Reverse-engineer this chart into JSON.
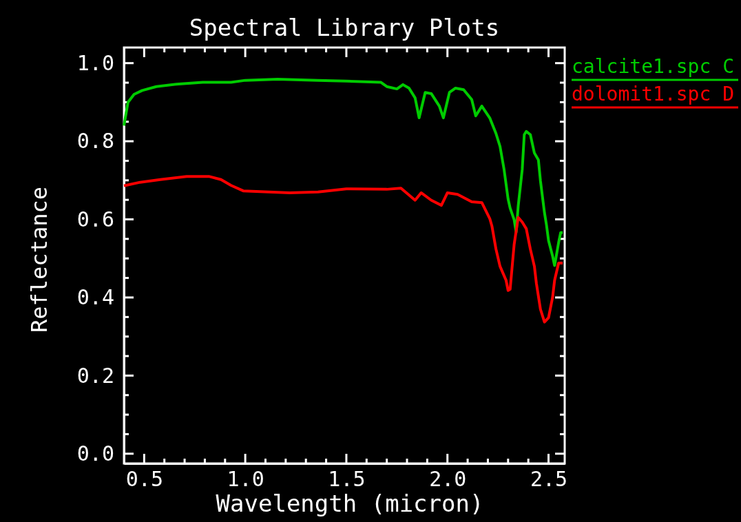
{
  "chart_data": {
    "type": "line",
    "title": "Spectral Library Plots",
    "xlabel": "Wavelength (micron)",
    "ylabel": "Reflectance",
    "xlim": [
      0.4,
      2.58
    ],
    "ylim": [
      -0.025,
      1.04
    ],
    "xticks": [
      {
        "value": 0.5,
        "label": "0.5"
      },
      {
        "value": 0.6,
        "label": null
      },
      {
        "value": 0.7,
        "label": null
      },
      {
        "value": 0.8,
        "label": null
      },
      {
        "value": 0.9,
        "label": null
      },
      {
        "value": 1.0,
        "label": "1.0"
      },
      {
        "value": 1.1,
        "label": null
      },
      {
        "value": 1.2,
        "label": null
      },
      {
        "value": 1.3,
        "label": null
      },
      {
        "value": 1.4,
        "label": null
      },
      {
        "value": 1.5,
        "label": "1.5"
      },
      {
        "value": 1.6,
        "label": null
      },
      {
        "value": 1.7,
        "label": null
      },
      {
        "value": 1.8,
        "label": null
      },
      {
        "value": 1.9,
        "label": null
      },
      {
        "value": 2.0,
        "label": "2.0"
      },
      {
        "value": 2.1,
        "label": null
      },
      {
        "value": 2.2,
        "label": null
      },
      {
        "value": 2.3,
        "label": null
      },
      {
        "value": 2.4,
        "label": null
      },
      {
        "value": 2.5,
        "label": "2.5"
      }
    ],
    "yticks": [
      {
        "value": 0,
        "label": "0.0"
      },
      {
        "value": 0.05,
        "label": null
      },
      {
        "value": 0.1,
        "label": null
      },
      {
        "value": 0.15,
        "label": null
      },
      {
        "value": 0.2,
        "label": "0.2"
      },
      {
        "value": 0.25,
        "label": null
      },
      {
        "value": 0.3,
        "label": null
      },
      {
        "value": 0.35,
        "label": null
      },
      {
        "value": 0.4,
        "label": "0.4"
      },
      {
        "value": 0.45,
        "label": null
      },
      {
        "value": 0.5,
        "label": null
      },
      {
        "value": 0.55,
        "label": null
      },
      {
        "value": 0.6,
        "label": "0.6"
      },
      {
        "value": 0.65,
        "label": null
      },
      {
        "value": 0.7,
        "label": null
      },
      {
        "value": 0.75,
        "label": null
      },
      {
        "value": 0.8,
        "label": "0.8"
      },
      {
        "value": 0.85,
        "label": null
      },
      {
        "value": 0.9,
        "label": null
      },
      {
        "value": 0.95,
        "label": null
      },
      {
        "value": 1.0,
        "label": "1.0"
      }
    ],
    "grid": false,
    "legend": "top right",
    "marker": "none",
    "line_style": "solid",
    "series": [
      {
        "name": "calcite1.spc C",
        "color": "#00cc00",
        "x": [
          0.4,
          0.42,
          0.45,
          0.49,
          0.56,
          0.66,
          0.79,
          0.93,
          1.0,
          1.16,
          1.36,
          1.5,
          1.67,
          1.7,
          1.75,
          1.78,
          1.81,
          1.84,
          1.86,
          1.89,
          1.92,
          1.96,
          1.98,
          2.01,
          2.04,
          2.08,
          2.12,
          2.14,
          2.17,
          2.21,
          2.24,
          2.26,
          2.28,
          2.3,
          2.31,
          2.33,
          2.34,
          2.35,
          2.37,
          2.38,
          2.39,
          2.41,
          2.43,
          2.45,
          2.46,
          2.48,
          2.49,
          2.5,
          2.52,
          2.53,
          2.54,
          2.55,
          2.56,
          2.57
        ],
        "values": [
          0.84,
          0.9,
          0.92,
          0.93,
          0.94,
          0.946,
          0.951,
          0.951,
          0.956,
          0.959,
          0.956,
          0.954,
          0.951,
          0.94,
          0.934,
          0.945,
          0.936,
          0.911,
          0.86,
          0.925,
          0.922,
          0.89,
          0.86,
          0.925,
          0.936,
          0.932,
          0.907,
          0.865,
          0.89,
          0.859,
          0.82,
          0.787,
          0.728,
          0.652,
          0.629,
          0.599,
          0.567,
          0.634,
          0.728,
          0.817,
          0.825,
          0.817,
          0.77,
          0.752,
          0.699,
          0.617,
          0.585,
          0.546,
          0.506,
          0.482,
          0.511,
          0.541,
          0.566,
          0.566
        ]
      },
      {
        "name": "dolomit1.spc D",
        "color": "#ff0000",
        "x": [
          0.4,
          0.48,
          0.58,
          0.71,
          0.82,
          0.88,
          0.93,
          0.99,
          1.22,
          1.36,
          1.5,
          1.7,
          1.77,
          1.84,
          1.87,
          1.92,
          1.97,
          2.0,
          2.05,
          2.12,
          2.17,
          2.21,
          2.22,
          2.24,
          2.26,
          2.29,
          2.3,
          2.31,
          2.33,
          2.35,
          2.37,
          2.39,
          2.41,
          2.43,
          2.44,
          2.46,
          2.48,
          2.5,
          2.52,
          2.53,
          2.55,
          2.57
        ],
        "values": [
          0.686,
          0.695,
          0.702,
          0.71,
          0.71,
          0.702,
          0.687,
          0.673,
          0.668,
          0.67,
          0.678,
          0.677,
          0.68,
          0.649,
          0.668,
          0.649,
          0.636,
          0.668,
          0.664,
          0.645,
          0.643,
          0.601,
          0.583,
          0.524,
          0.48,
          0.444,
          0.418,
          0.421,
          0.536,
          0.605,
          0.593,
          0.576,
          0.524,
          0.48,
          0.436,
          0.37,
          0.337,
          0.348,
          0.4,
          0.444,
          0.488,
          0.488
        ]
      }
    ]
  }
}
